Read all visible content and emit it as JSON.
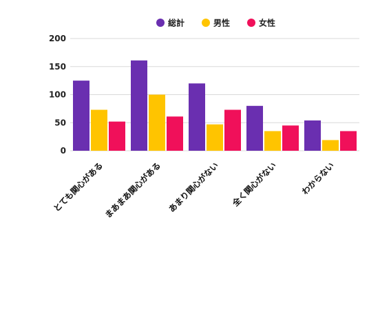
{
  "chart_data": {
    "type": "bar",
    "title": "",
    "xlabel": "",
    "ylabel": "",
    "categories": [
      "とても関心がある",
      "まあまあ関心がある",
      "あまり関心がない",
      "全く関心がない",
      "わからない"
    ],
    "series": [
      {
        "name": "総計",
        "color": "#6a2fb0",
        "values": [
          125,
          161,
          120,
          80,
          54
        ]
      },
      {
        "name": "男性",
        "color": "#ffc400",
        "values": [
          73,
          100,
          47,
          35,
          19
        ]
      },
      {
        "name": "女性",
        "color": "#f0105a",
        "values": [
          52,
          61,
          73,
          45,
          35
        ]
      }
    ],
    "ylim": [
      0,
      200
    ],
    "yticks": [
      0,
      50,
      100,
      150,
      200
    ],
    "ytick_labels": [
      "0",
      "50",
      "100",
      "150",
      "200"
    ],
    "grid": true,
    "legend_position": "top-center"
  }
}
